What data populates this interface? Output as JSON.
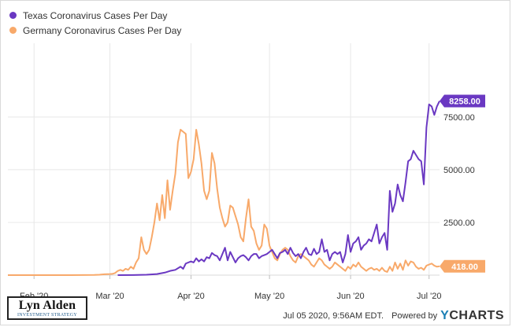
{
  "chart_data": {
    "type": "line",
    "xlabel": "",
    "ylabel": "",
    "ylim": [
      0,
      11000
    ],
    "y_ticks": [
      "2500.00",
      "5000.00",
      "7500.00"
    ],
    "y_tick_values": [
      2500,
      5000,
      7500
    ],
    "x_ticks": [
      "Feb '20",
      "Mar '20",
      "Apr '20",
      "May '20",
      "Jun '20",
      "Jul '20"
    ],
    "x_tick_dates": [
      "2020-02-01",
      "2020-03-01",
      "2020-04-01",
      "2020-05-01",
      "2020-06-01",
      "2020-07-01"
    ],
    "x_range": [
      "2020-01-22",
      "2020-07-05"
    ],
    "grid": true,
    "legend_position": "top-left",
    "series": [
      {
        "name": "Texas Coronavirus Cases Per Day",
        "color": "#6a38c2",
        "end_label": "8258.00",
        "points": [
          [
            "2020-03-04",
            0
          ],
          [
            "2020-03-10",
            5
          ],
          [
            "2020-03-15",
            20
          ],
          [
            "2020-03-19",
            50
          ],
          [
            "2020-03-22",
            120
          ],
          [
            "2020-03-24",
            200
          ],
          [
            "2020-03-26",
            250
          ],
          [
            "2020-03-28",
            400
          ],
          [
            "2020-03-29",
            300
          ],
          [
            "2020-03-30",
            550
          ],
          [
            "2020-04-01",
            650
          ],
          [
            "2020-04-02",
            600
          ],
          [
            "2020-04-03",
            800
          ],
          [
            "2020-04-04",
            650
          ],
          [
            "2020-04-05",
            750
          ],
          [
            "2020-04-06",
            650
          ],
          [
            "2020-04-07",
            850
          ],
          [
            "2020-04-08",
            800
          ],
          [
            "2020-04-09",
            1050
          ],
          [
            "2020-04-10",
            950
          ],
          [
            "2020-04-11",
            900
          ],
          [
            "2020-04-12",
            700
          ],
          [
            "2020-04-13",
            1000
          ],
          [
            "2020-04-14",
            1300
          ],
          [
            "2020-04-15",
            700
          ],
          [
            "2020-04-16",
            1100
          ],
          [
            "2020-04-17",
            850
          ],
          [
            "2020-04-18",
            600
          ],
          [
            "2020-04-19",
            800
          ],
          [
            "2020-04-20",
            900
          ],
          [
            "2020-04-21",
            950
          ],
          [
            "2020-04-22",
            850
          ],
          [
            "2020-04-23",
            700
          ],
          [
            "2020-04-24",
            900
          ],
          [
            "2020-04-25",
            1000
          ],
          [
            "2020-04-26",
            1000
          ],
          [
            "2020-04-27",
            800
          ],
          [
            "2020-04-28",
            900
          ],
          [
            "2020-04-29",
            950
          ],
          [
            "2020-04-30",
            1000
          ],
          [
            "2020-05-01",
            1100
          ],
          [
            "2020-05-02",
            1200
          ],
          [
            "2020-05-03",
            1000
          ],
          [
            "2020-05-04",
            800
          ],
          [
            "2020-05-05",
            1050
          ],
          [
            "2020-05-06",
            1100
          ],
          [
            "2020-05-07",
            1200
          ],
          [
            "2020-05-08",
            1000
          ],
          [
            "2020-05-09",
            1300
          ],
          [
            "2020-05-10",
            1050
          ],
          [
            "2020-05-11",
            900
          ],
          [
            "2020-05-12",
            1000
          ],
          [
            "2020-05-13",
            800
          ],
          [
            "2020-05-14",
            1100
          ],
          [
            "2020-05-15",
            1300
          ],
          [
            "2020-05-16",
            1000
          ],
          [
            "2020-05-17",
            950
          ],
          [
            "2020-05-18",
            1250
          ],
          [
            "2020-05-19",
            1000
          ],
          [
            "2020-05-20",
            1100
          ],
          [
            "2020-05-21",
            1700
          ],
          [
            "2020-05-22",
            1100
          ],
          [
            "2020-05-23",
            1200
          ],
          [
            "2020-05-24",
            700
          ],
          [
            "2020-05-25",
            1000
          ],
          [
            "2020-05-26",
            1100
          ],
          [
            "2020-05-27",
            1000
          ],
          [
            "2020-05-28",
            1100
          ],
          [
            "2020-05-29",
            600
          ],
          [
            "2020-05-30",
            1000
          ],
          [
            "2020-05-31",
            1900
          ],
          [
            "2020-06-01",
            1100
          ],
          [
            "2020-06-02",
            1500
          ],
          [
            "2020-06-03",
            1600
          ],
          [
            "2020-06-04",
            1800
          ],
          [
            "2020-06-05",
            1200
          ],
          [
            "2020-06-06",
            1400
          ],
          [
            "2020-06-07",
            1500
          ],
          [
            "2020-06-08",
            1700
          ],
          [
            "2020-06-09",
            1600
          ],
          [
            "2020-06-10",
            2000
          ],
          [
            "2020-06-11",
            2400
          ],
          [
            "2020-06-12",
            1500
          ],
          [
            "2020-06-13",
            1800
          ],
          [
            "2020-06-14",
            2000
          ],
          [
            "2020-06-15",
            1200
          ],
          [
            "2020-06-16",
            4000
          ],
          [
            "2020-06-17",
            3000
          ],
          [
            "2020-06-18",
            3400
          ],
          [
            "2020-06-19",
            4300
          ],
          [
            "2020-06-20",
            3800
          ],
          [
            "2020-06-21",
            3500
          ],
          [
            "2020-06-22",
            4400
          ],
          [
            "2020-06-23",
            5400
          ],
          [
            "2020-06-24",
            5500
          ],
          [
            "2020-06-25",
            5900
          ],
          [
            "2020-06-26",
            5700
          ],
          [
            "2020-06-27",
            5500
          ],
          [
            "2020-06-28",
            5400
          ],
          [
            "2020-06-29",
            4300
          ],
          [
            "2020-06-30",
            7000
          ],
          [
            "2020-07-01",
            8100
          ],
          [
            "2020-07-02",
            8000
          ],
          [
            "2020-07-03",
            7600
          ],
          [
            "2020-07-04",
            8000
          ],
          [
            "2020-07-05",
            8258
          ]
        ]
      },
      {
        "name": "Germany Coronavirus Cases Per Day",
        "color": "#f8a96a",
        "end_label": "418.00",
        "points": [
          [
            "2020-01-22",
            0
          ],
          [
            "2020-02-01",
            0
          ],
          [
            "2020-02-15",
            0
          ],
          [
            "2020-02-24",
            10
          ],
          [
            "2020-02-26",
            20
          ],
          [
            "2020-02-28",
            40
          ],
          [
            "2020-03-01",
            50
          ],
          [
            "2020-03-02",
            60
          ],
          [
            "2020-03-03",
            100
          ],
          [
            "2020-03-04",
            200
          ],
          [
            "2020-03-05",
            250
          ],
          [
            "2020-03-06",
            200
          ],
          [
            "2020-03-07",
            300
          ],
          [
            "2020-03-08",
            250
          ],
          [
            "2020-03-09",
            400
          ],
          [
            "2020-03-10",
            300
          ],
          [
            "2020-03-11",
            600
          ],
          [
            "2020-03-12",
            800
          ],
          [
            "2020-03-13",
            1800
          ],
          [
            "2020-03-14",
            1200
          ],
          [
            "2020-03-15",
            1000
          ],
          [
            "2020-03-16",
            1200
          ],
          [
            "2020-03-17",
            1800
          ],
          [
            "2020-03-18",
            2500
          ],
          [
            "2020-03-19",
            3400
          ],
          [
            "2020-03-20",
            2600
          ],
          [
            "2020-03-21",
            3800
          ],
          [
            "2020-03-22",
            2700
          ],
          [
            "2020-03-23",
            4500
          ],
          [
            "2020-03-24",
            3100
          ],
          [
            "2020-03-25",
            4000
          ],
          [
            "2020-03-26",
            4800
          ],
          [
            "2020-03-27",
            6300
          ],
          [
            "2020-03-28",
            6900
          ],
          [
            "2020-03-29",
            6800
          ],
          [
            "2020-03-30",
            6700
          ],
          [
            "2020-03-31",
            4600
          ],
          [
            "2020-04-01",
            4900
          ],
          [
            "2020-04-02",
            5500
          ],
          [
            "2020-04-03",
            6900
          ],
          [
            "2020-04-04",
            6200
          ],
          [
            "2020-04-05",
            5300
          ],
          [
            "2020-04-06",
            4000
          ],
          [
            "2020-04-07",
            3600
          ],
          [
            "2020-04-08",
            4000
          ],
          [
            "2020-04-09",
            5800
          ],
          [
            "2020-04-10",
            5300
          ],
          [
            "2020-04-11",
            4100
          ],
          [
            "2020-04-12",
            3200
          ],
          [
            "2020-04-13",
            2700
          ],
          [
            "2020-04-14",
            2300
          ],
          [
            "2020-04-15",
            2500
          ],
          [
            "2020-04-16",
            3300
          ],
          [
            "2020-04-17",
            3200
          ],
          [
            "2020-04-18",
            2800
          ],
          [
            "2020-04-19",
            2400
          ],
          [
            "2020-04-20",
            1800
          ],
          [
            "2020-04-21",
            1600
          ],
          [
            "2020-04-22",
            2700
          ],
          [
            "2020-04-23",
            3600
          ],
          [
            "2020-04-24",
            2300
          ],
          [
            "2020-04-25",
            2100
          ],
          [
            "2020-04-26",
            1500
          ],
          [
            "2020-04-27",
            1200
          ],
          [
            "2020-04-28",
            1400
          ],
          [
            "2020-04-29",
            2400
          ],
          [
            "2020-04-30",
            2200
          ],
          [
            "2020-05-01",
            1400
          ],
          [
            "2020-05-02",
            1100
          ],
          [
            "2020-05-03",
            800
          ],
          [
            "2020-05-04",
            700
          ],
          [
            "2020-05-05",
            1000
          ],
          [
            "2020-05-06",
            1200
          ],
          [
            "2020-05-07",
            1300
          ],
          [
            "2020-05-08",
            1200
          ],
          [
            "2020-05-09",
            900
          ],
          [
            "2020-05-10",
            700
          ],
          [
            "2020-05-11",
            600
          ],
          [
            "2020-05-12",
            900
          ],
          [
            "2020-05-13",
            1000
          ],
          [
            "2020-05-14",
            900
          ],
          [
            "2020-05-15",
            800
          ],
          [
            "2020-05-16",
            700
          ],
          [
            "2020-05-17",
            500
          ],
          [
            "2020-05-18",
            400
          ],
          [
            "2020-05-19",
            600
          ],
          [
            "2020-05-20",
            800
          ],
          [
            "2020-05-21",
            700
          ],
          [
            "2020-05-22",
            500
          ],
          [
            "2020-05-23",
            400
          ],
          [
            "2020-05-24",
            300
          ],
          [
            "2020-05-25",
            400
          ],
          [
            "2020-05-26",
            600
          ],
          [
            "2020-05-27",
            500
          ],
          [
            "2020-05-28",
            400
          ],
          [
            "2020-05-29",
            300
          ],
          [
            "2020-05-30",
            200
          ],
          [
            "2020-05-31",
            400
          ],
          [
            "2020-06-01",
            300
          ],
          [
            "2020-06-02",
            500
          ],
          [
            "2020-06-03",
            400
          ],
          [
            "2020-06-04",
            600
          ],
          [
            "2020-06-05",
            400
          ],
          [
            "2020-06-06",
            300
          ],
          [
            "2020-06-07",
            200
          ],
          [
            "2020-06-08",
            300
          ],
          [
            "2020-06-09",
            350
          ],
          [
            "2020-06-10",
            250
          ],
          [
            "2020-06-11",
            300
          ],
          [
            "2020-06-12",
            200
          ],
          [
            "2020-06-13",
            350
          ],
          [
            "2020-06-14",
            200
          ],
          [
            "2020-06-15",
            150
          ],
          [
            "2020-06-16",
            400
          ],
          [
            "2020-06-17",
            200
          ],
          [
            "2020-06-18",
            600
          ],
          [
            "2020-06-19",
            300
          ],
          [
            "2020-06-20",
            550
          ],
          [
            "2020-06-21",
            250
          ],
          [
            "2020-06-22",
            700
          ],
          [
            "2020-06-23",
            450
          ],
          [
            "2020-06-24",
            650
          ],
          [
            "2020-06-25",
            600
          ],
          [
            "2020-06-26",
            400
          ],
          [
            "2020-06-27",
            300
          ],
          [
            "2020-06-28",
            350
          ],
          [
            "2020-06-29",
            250
          ],
          [
            "2020-06-30",
            450
          ],
          [
            "2020-07-01",
            500
          ],
          [
            "2020-07-02",
            550
          ],
          [
            "2020-07-03",
            450
          ],
          [
            "2020-07-04",
            400
          ],
          [
            "2020-07-05",
            418
          ]
        ]
      }
    ]
  },
  "branding": {
    "logo_name": "Lyn Alden",
    "logo_tagline": "INVESTMENT STRATEGY"
  },
  "footer": {
    "timestamp": "Jul 05 2020, 9:56AM EDT.",
    "powered_by": "Powered by",
    "ycharts_y": "Y",
    "ycharts_rest": "CHARTS"
  }
}
